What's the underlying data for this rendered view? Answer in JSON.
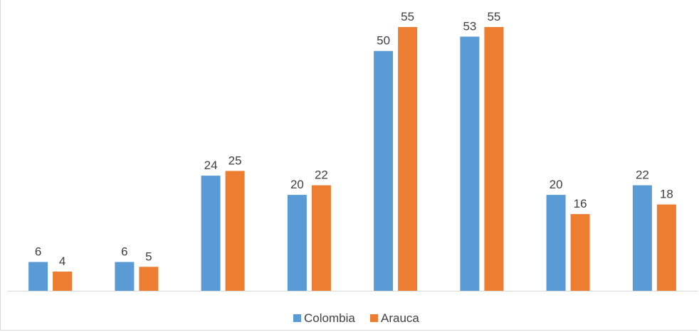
{
  "chart_data": {
    "type": "bar",
    "categories": [
      "",
      "",
      "",
      "",
      "",
      "",
      "",
      ""
    ],
    "series": [
      {
        "name": "Colombia",
        "color": "#5b9bd5",
        "values": [
          6,
          6,
          24,
          20,
          50,
          53,
          20,
          22
        ]
      },
      {
        "name": "Arauca",
        "color": "#ed7d31",
        "values": [
          4,
          5,
          25,
          22,
          55,
          55,
          16,
          18
        ]
      }
    ],
    "title": "",
    "xlabel": "",
    "ylabel": "",
    "ylim": [
      0,
      55
    ],
    "grid": false,
    "legend": "bottom",
    "data_labels": true
  }
}
